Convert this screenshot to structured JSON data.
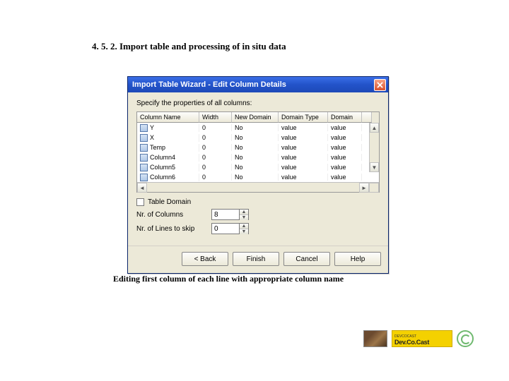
{
  "page": {
    "section_title": "4. 5. 2. Import table and processing of in situ data",
    "caption": "Editing first column of each line with appropriate column name"
  },
  "dialog": {
    "title": "Import Table Wizard - Edit Column Details",
    "instruction": "Specify the properties of all columns:",
    "columns": [
      "Column Name",
      "Width",
      "New Domain",
      "Domain Type",
      "Domain"
    ],
    "rows": [
      {
        "name": "Y",
        "width": "0",
        "newdomain": "No",
        "domaintype": "value",
        "domain": "value"
      },
      {
        "name": "X",
        "width": "0",
        "newdomain": "No",
        "domaintype": "value",
        "domain": "value"
      },
      {
        "name": "Temp",
        "width": "0",
        "newdomain": "No",
        "domaintype": "value",
        "domain": "value"
      },
      {
        "name": "Column4",
        "width": "0",
        "newdomain": "No",
        "domaintype": "value",
        "domain": "value"
      },
      {
        "name": "Column5",
        "width": "0",
        "newdomain": "No",
        "domaintype": "value",
        "domain": "value"
      },
      {
        "name": "Column6",
        "width": "0",
        "newdomain": "No",
        "domaintype": "value",
        "domain": "value"
      }
    ],
    "checkbox_label": "Table Domain",
    "nr_columns_label": "Nr. of Columns",
    "nr_columns_value": "8",
    "nr_lines_skip_label": "Nr. of Lines to skip",
    "nr_lines_skip_value": "0",
    "buttons": {
      "back": "< Back",
      "finish": "Finish",
      "cancel": "Cancel",
      "help": "Help"
    }
  },
  "footer": {
    "brand": "Dev.Co.Cast",
    "smalltext": "DEVCOCAST"
  },
  "colors": {
    "titlebar_start": "#3a6ee7",
    "titlebar_end": "#1d49b8",
    "dialog_bg": "#ece9d8",
    "close_bg": "#d9522d",
    "logo_bg": "#f4d100"
  }
}
